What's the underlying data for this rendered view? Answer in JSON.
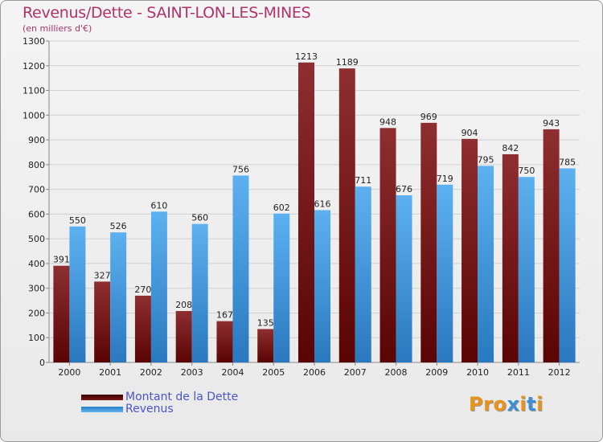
{
  "title": "Revenus/Dette - SAINT-LON-LES-MINES",
  "subtitle": "(en milliers d'€)",
  "logo": {
    "text": "Proxiti",
    "colors": [
      "#e8921a",
      "#e8921a",
      "#e8921a",
      "#3b8fd1",
      "#e8921a",
      "#3b8fd1",
      "#e8921a"
    ]
  },
  "legend": [
    {
      "label": "Montant de la Dette",
      "color": "#6b0c0c"
    },
    {
      "label": "Revenus",
      "color": "#3d9be6"
    }
  ],
  "chart_data": {
    "type": "bar",
    "title": "Revenus/Dette - SAINT-LON-LES-MINES",
    "subtitle": "(en milliers d'€)",
    "categories": [
      "2000",
      "2001",
      "2002",
      "2003",
      "2004",
      "2005",
      "2006",
      "2007",
      "2008",
      "2009",
      "2010",
      "2011",
      "2012"
    ],
    "series": [
      {
        "name": "Montant de la Dette",
        "color": "#8a1a1a",
        "values": [
          391,
          327,
          270,
          208,
          167,
          135,
          1213,
          1189,
          948,
          969,
          904,
          842,
          943
        ]
      },
      {
        "name": "Revenus",
        "color": "#3d9be6",
        "values": [
          550,
          526,
          610,
          560,
          756,
          602,
          616,
          711,
          676,
          719,
          795,
          750,
          785
        ]
      }
    ],
    "yticks": [
      0,
      100,
      200,
      300,
      400,
      500,
      600,
      700,
      800,
      900,
      1000,
      1100,
      1200,
      1300
    ],
    "ylim": [
      0,
      1300
    ],
    "grid": true,
    "legend_position": "bottom-left"
  }
}
